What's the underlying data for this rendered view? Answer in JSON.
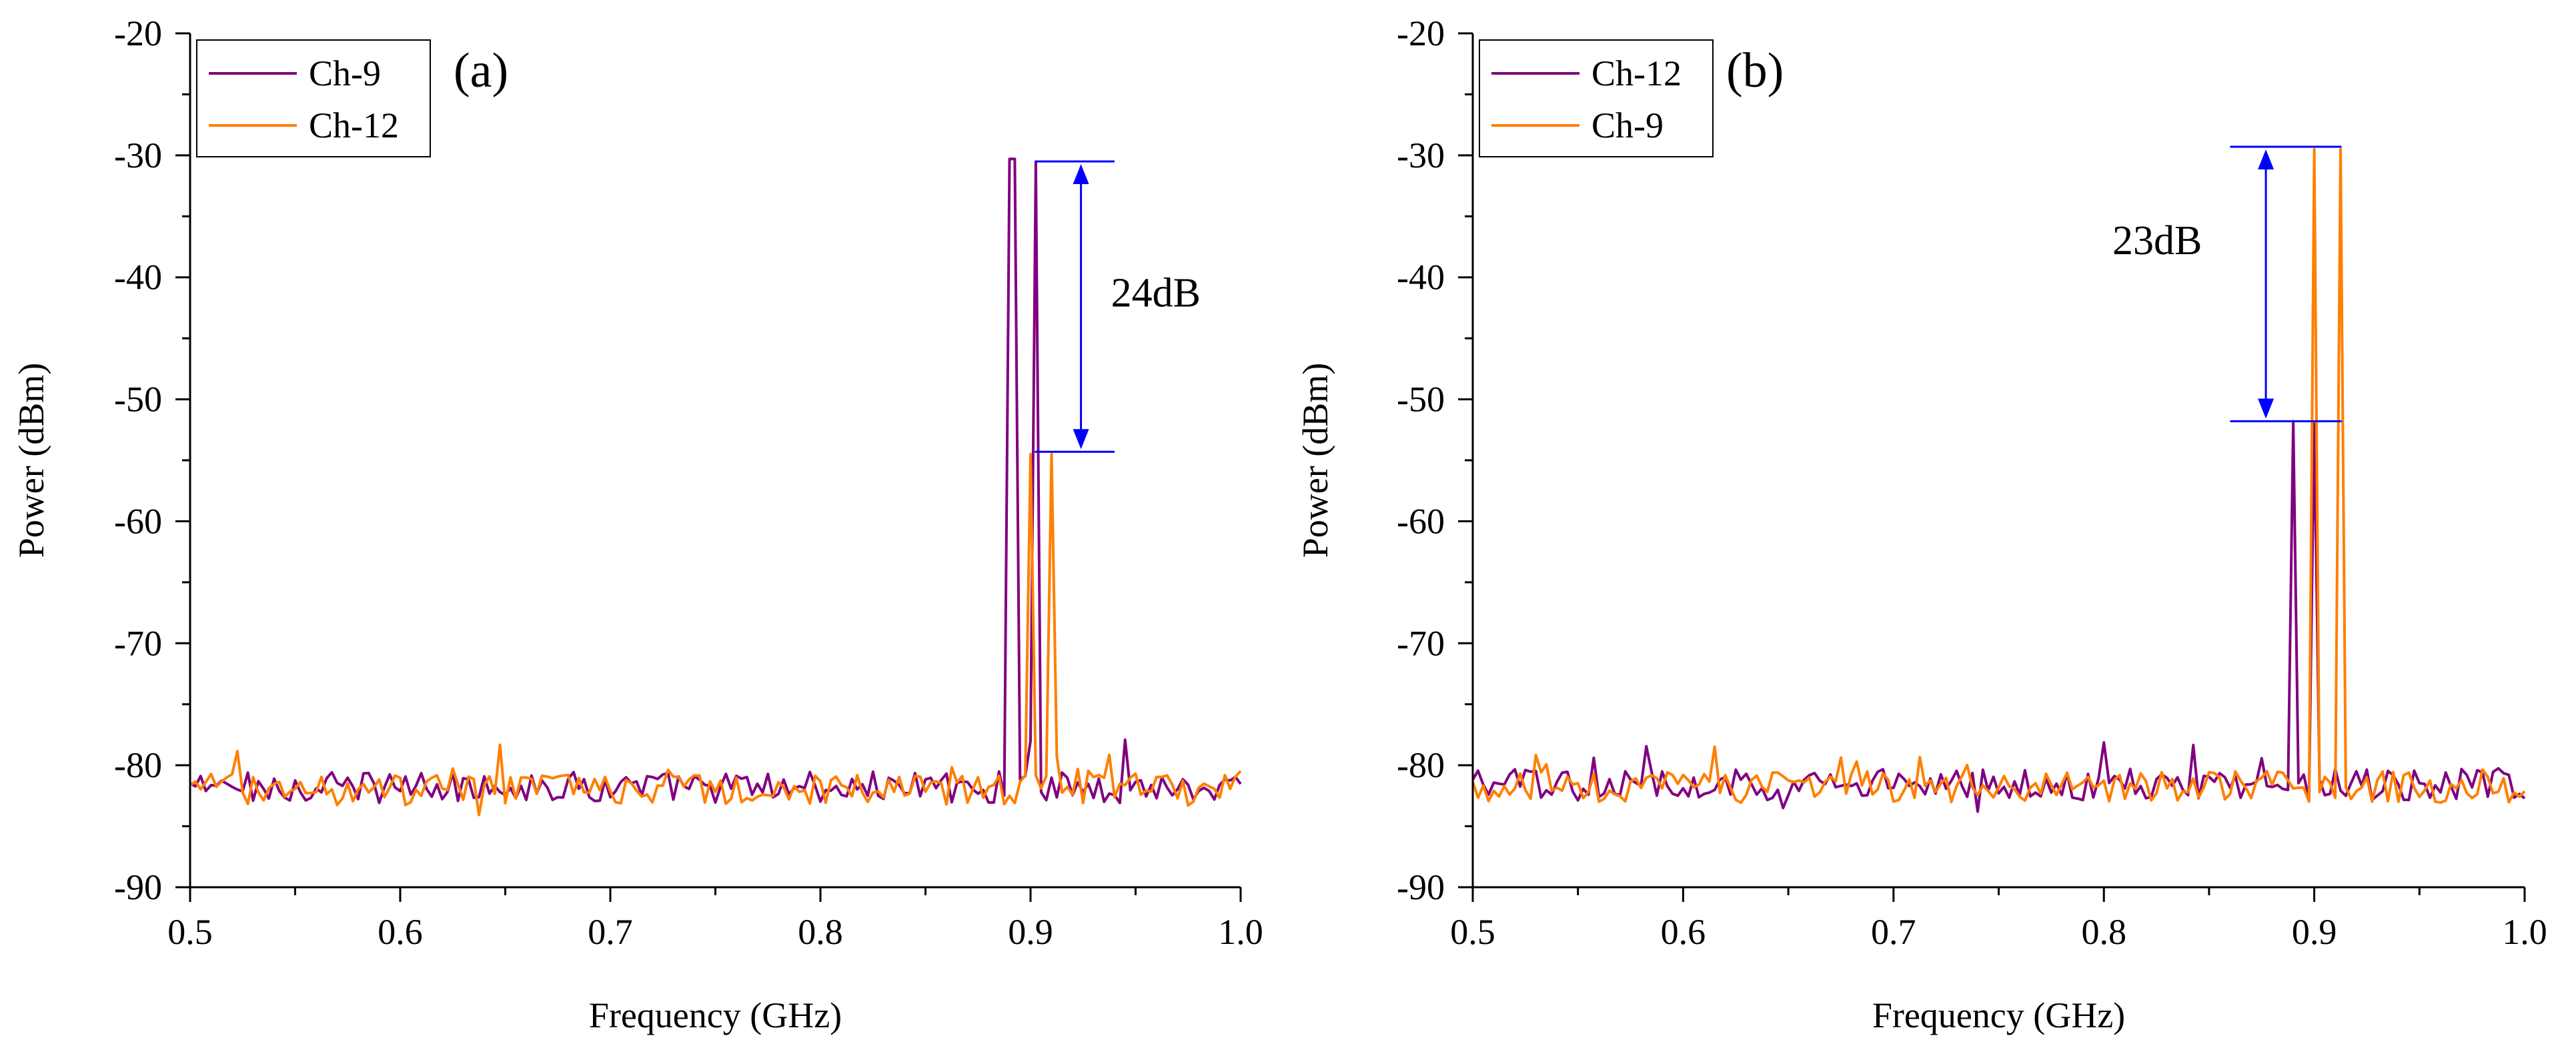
{
  "chart_data": [
    {
      "type": "line",
      "panel_label": "(a)",
      "xlabel": "Frequency (GHz)",
      "ylabel": "Power (dBm)",
      "xlim": [
        0.5,
        1.0
      ],
      "ylim": [
        -90,
        -20
      ],
      "xticks": [
        0.5,
        0.6,
        0.7,
        0.8,
        0.9,
        1.0
      ],
      "xtick_labels": [
        "0.5",
        "0.6",
        "0.7",
        "0.8",
        "0.9",
        "1.0"
      ],
      "yticks": [
        -90,
        -80,
        -70,
        -60,
        -50,
        -40,
        -30,
        -20
      ],
      "ytick_labels": [
        "-90",
        "-80",
        "-70",
        "-60",
        "-50",
        "-40",
        "-30",
        "-20"
      ],
      "legend_position": "top-left",
      "series": [
        {
          "name": "Ch-9",
          "color": "#800080",
          "noise_floor": -81.8,
          "peaks": [
            {
              "x": 0.8915,
              "y": -30.3
            },
            {
              "x": 0.9025,
              "y": -30.6
            }
          ]
        },
        {
          "name": "Ch-12",
          "color": "#ff7f00",
          "noise_floor": -82.0,
          "peaks": [
            {
              "x": 0.9005,
              "y": -54.5
            },
            {
              "x": 0.9105,
              "y": -54.5
            }
          ]
        }
      ],
      "annotation": {
        "text": "24dB",
        "color": "#0000ff",
        "from": -30.5,
        "to": -54.3,
        "x_range": [
          0.902,
          0.94
        ],
        "arrow_x": 0.924
      }
    },
    {
      "type": "line",
      "panel_label": "(b)",
      "xlabel": "Frequency (GHz)",
      "ylabel": "Power (dBm)",
      "xlim": [
        0.5,
        1.0
      ],
      "ylim": [
        -90,
        -20
      ],
      "xticks": [
        0.5,
        0.6,
        0.7,
        0.8,
        0.9,
        1.0
      ],
      "xtick_labels": [
        "0.5",
        "0.6",
        "0.7",
        "0.8",
        "0.9",
        "1.0"
      ],
      "yticks": [
        -90,
        -80,
        -70,
        -60,
        -50,
        -40,
        -30,
        -20
      ],
      "ytick_labels": [
        "-90",
        "-80",
        "-70",
        "-60",
        "-50",
        "-40",
        "-30",
        "-20"
      ],
      "legend_position": "top-left",
      "series": [
        {
          "name": "Ch-12",
          "color": "#800080",
          "noise_floor": -81.6,
          "peaks": [
            {
              "x": 0.891,
              "y": -51.8
            },
            {
              "x": 0.901,
              "y": -52.0
            }
          ]
        },
        {
          "name": "Ch-9",
          "color": "#ff7f00",
          "noise_floor": -81.8,
          "peaks": [
            {
              "x": 0.901,
              "y": -29.5
            },
            {
              "x": 0.912,
              "y": -29.5
            }
          ]
        }
      ],
      "annotation": {
        "text": "23dB",
        "color": "#0000ff",
        "from": -29.3,
        "to": -51.8,
        "x_range": [
          0.86,
          0.913
        ],
        "arrow_x": 0.877
      }
    }
  ]
}
